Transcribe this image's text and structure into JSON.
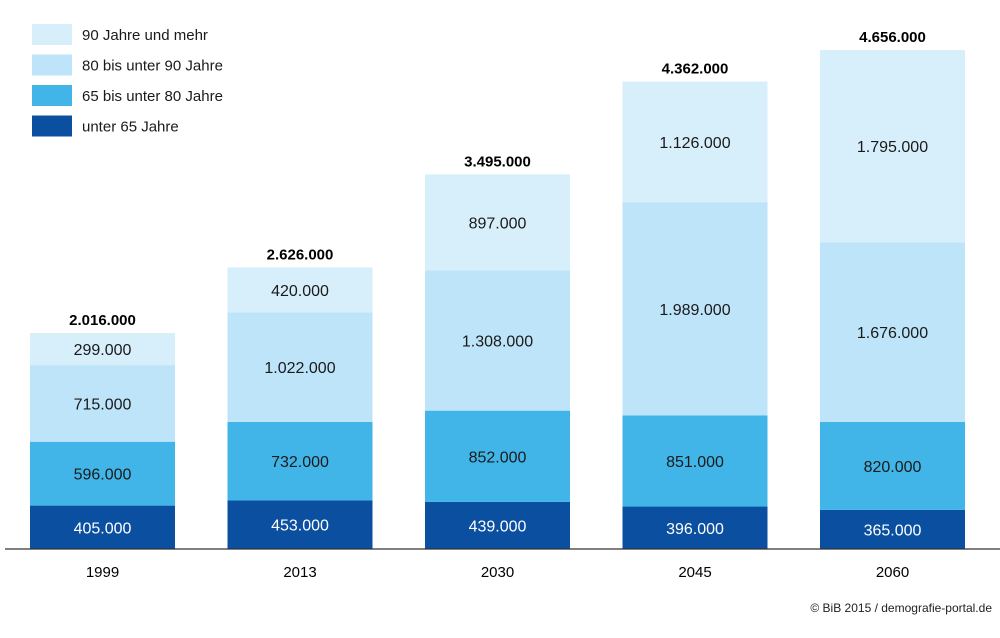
{
  "chart_data": {
    "type": "bar",
    "stacked": true,
    "categories": [
      "1999",
      "2013",
      "2030",
      "2045",
      "2060"
    ],
    "series": [
      {
        "name": "unter 65 Jahre",
        "color": "#0b4fa0",
        "label_color": "#ffffff",
        "values": [
          405000,
          453000,
          439000,
          396000,
          365000
        ],
        "labels": [
          "405.000",
          "453.000",
          "439.000",
          "396.000",
          "365.000"
        ]
      },
      {
        "name": "65 bis unter 80 Jahre",
        "color": "#41b5e8",
        "label_color": "#1a1a1a",
        "values": [
          596000,
          732000,
          852000,
          851000,
          820000
        ],
        "labels": [
          "596.000",
          "732.000",
          "852.000",
          "851.000",
          "820.000"
        ]
      },
      {
        "name": "80 bis unter 90 Jahre",
        "color": "#bde4f8",
        "label_color": "#1a1a1a",
        "values": [
          715000,
          1022000,
          1308000,
          1989000,
          1676000
        ],
        "labels": [
          "715.000",
          "1.022.000",
          "1.308.000",
          "1.989.000",
          "1.676.000"
        ]
      },
      {
        "name": "90 Jahre und mehr",
        "color": "#d7eefb",
        "label_color": "#1a1a1a",
        "values": [
          299000,
          420000,
          897000,
          1126000,
          1795000
        ],
        "labels": [
          "299.000",
          "420.000",
          "897.000",
          "1.126.000",
          "1.795.000"
        ]
      }
    ],
    "totals": [
      2016000,
      2626000,
      3495000,
      4362000,
      4656000
    ],
    "total_labels": [
      "2.016.000",
      "2.626.000",
      "3.495.000",
      "4.362.000",
      "4.656.000"
    ],
    "legend_order": [
      "90 Jahre und mehr",
      "80 bis unter 90 Jahre",
      "65 bis unter 80 Jahre",
      "unter 65 Jahre"
    ],
    "legend_position": "top-left",
    "ylim": [
      0,
      4656000
    ],
    "grid": false,
    "title": "",
    "xlabel": "",
    "ylabel": ""
  },
  "credit": "© BiB 2015 / demografie-portal.de"
}
